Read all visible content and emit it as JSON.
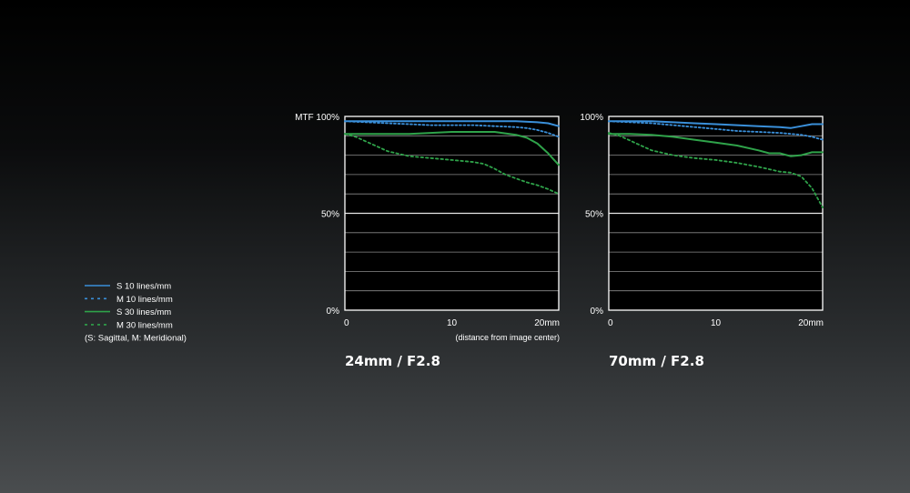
{
  "chart_data": [
    {
      "type": "line",
      "title": "24mm / F2.8",
      "ylabel": "MTF",
      "xlabel": "(distance from image center)",
      "xlim": [
        0,
        20
      ],
      "ylim": [
        0,
        100
      ],
      "x_ticks": [
        "0",
        "10",
        "20mm"
      ],
      "y_ticks": [
        "0%",
        "50%",
        "MTF 100%"
      ],
      "grid": true,
      "series": [
        {
          "name": "S 10 lines/mm",
          "color": "#3a8fd9",
          "style": "solid",
          "x": [
            0,
            2,
            4,
            6,
            8,
            10,
            12,
            14,
            16,
            18,
            19,
            20
          ],
          "y": [
            97.5,
            97.5,
            97.5,
            97.5,
            97.5,
            97.5,
            97.5,
            97.5,
            97.5,
            97,
            96.5,
            95
          ]
        },
        {
          "name": "M 10 lines/mm",
          "color": "#3a8fd9",
          "style": "dotted",
          "x": [
            0,
            2,
            4,
            6,
            8,
            10,
            12,
            14,
            16,
            17,
            18,
            19,
            20
          ],
          "y": [
            97.5,
            97,
            96.5,
            96,
            95.5,
            95.5,
            95.5,
            95,
            94.5,
            94,
            93,
            91.5,
            89.5
          ]
        },
        {
          "name": "S 30 lines/mm",
          "color": "#2fa34a",
          "style": "solid",
          "x": [
            0,
            2,
            4,
            6,
            8,
            10,
            12,
            14,
            16,
            17,
            18,
            19,
            19.5,
            20
          ],
          "y": [
            91,
            91,
            91,
            91,
            91.5,
            92,
            92,
            92,
            90.5,
            89,
            86,
            81,
            78,
            75
          ]
        },
        {
          "name": "M 30 lines/mm",
          "color": "#2fa34a",
          "style": "dashed",
          "x": [
            0,
            1,
            2,
            3,
            4,
            6,
            8,
            10,
            11,
            12,
            13,
            14,
            15,
            16,
            17,
            18,
            19,
            20
          ],
          "y": [
            91,
            89.5,
            87,
            84.5,
            82,
            79.5,
            78.5,
            77.5,
            77,
            76.5,
            75.5,
            73,
            70,
            68,
            66,
            64.5,
            62.5,
            60
          ]
        }
      ]
    },
    {
      "type": "line",
      "title": "70mm / F2.8",
      "ylabel": "",
      "xlabel": "",
      "xlim": [
        0,
        20
      ],
      "ylim": [
        0,
        100
      ],
      "x_ticks": [
        "0",
        "10",
        "20mm"
      ],
      "y_ticks": [
        "0%",
        "50%",
        "100%"
      ],
      "grid": true,
      "series": [
        {
          "name": "S 10 lines/mm",
          "color": "#3a8fd9",
          "style": "solid",
          "x": [
            0,
            2,
            4,
            6,
            8,
            10,
            12,
            14,
            16,
            17,
            18,
            19,
            20
          ],
          "y": [
            97.5,
            97.5,
            97.5,
            97,
            96.5,
            96,
            95.5,
            95,
            94.5,
            94,
            95,
            96,
            96
          ]
        },
        {
          "name": "M 10 lines/mm",
          "color": "#3a8fd9",
          "style": "dotted",
          "x": [
            0,
            2,
            4,
            6,
            8,
            10,
            12,
            14,
            16,
            18,
            19,
            20
          ],
          "y": [
            97.5,
            97,
            96.5,
            95.5,
            94.5,
            93.5,
            92.5,
            92,
            91.5,
            90.5,
            89.5,
            88
          ]
        },
        {
          "name": "S 30 lines/mm",
          "color": "#2fa34a",
          "style": "solid",
          "x": [
            0,
            2,
            4,
            6,
            8,
            10,
            12,
            14,
            15,
            16,
            17,
            18,
            19,
            20
          ],
          "y": [
            91,
            91,
            90.5,
            89.5,
            88,
            86.5,
            85,
            82.5,
            81,
            81,
            79.5,
            80,
            81.5,
            81.5
          ]
        },
        {
          "name": "M 30 lines/mm",
          "color": "#2fa34a",
          "style": "dashed",
          "x": [
            0,
            1,
            2,
            3,
            4,
            6,
            8,
            10,
            12,
            14,
            16,
            17,
            18,
            19,
            20
          ],
          "y": [
            91.5,
            90,
            87.5,
            85,
            82.5,
            80,
            78.5,
            77.5,
            76,
            74,
            71.5,
            71,
            69,
            63,
            53
          ]
        }
      ]
    }
  ],
  "legend": {
    "items": [
      {
        "label": "S  10 lines/mm",
        "color": "#3a8fd9",
        "style": "solid"
      },
      {
        "label": "M 10 lines/mm",
        "color": "#3a8fd9",
        "style": "dashed"
      },
      {
        "label": "S  30 lines/mm",
        "color": "#2fa34a",
        "style": "solid"
      },
      {
        "label": "M 30 lines/mm",
        "color": "#2fa34a",
        "style": "dashed"
      }
    ],
    "note": "(S: Sagittal, M: Meridional)"
  }
}
